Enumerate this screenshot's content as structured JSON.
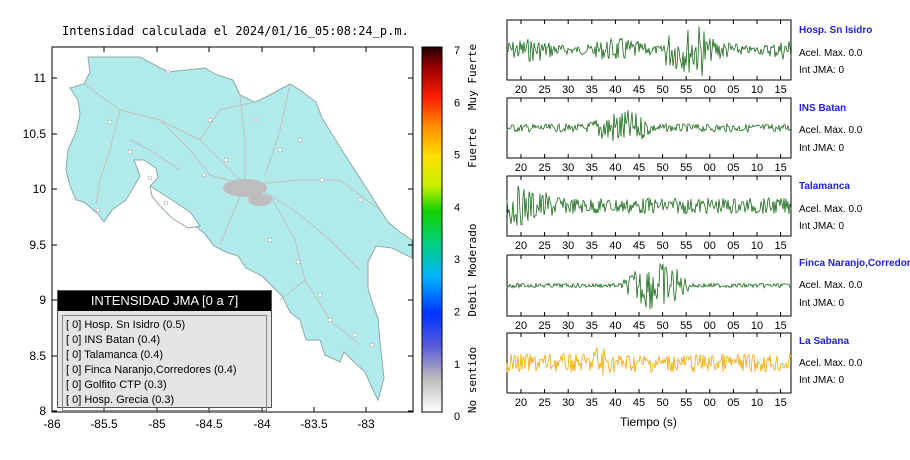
{
  "map": {
    "title": "Intensidad calculada el 2024/01/16_05:08:24_p.m.",
    "y_ticks": [
      "11",
      "10.5",
      "10",
      "9.5",
      "9",
      "8.5",
      "8"
    ],
    "x_ticks": [
      "-86",
      "-85.5",
      "-85",
      "-84.5",
      "-84",
      "-83.5",
      "-83"
    ],
    "fill_color": "#b0eaea"
  },
  "legend": {
    "title": "INTENSIDAD JMA [0 a 7]",
    "items": [
      "[ 0]  Hosp. Sn Isidro (0.5)",
      "[ 0]  INS Batan (0.4)",
      "[ 0]  Talamanca (0.4)",
      "[ 0]  Finca Naranjo,Corredores (0.4)",
      "[ 0]  Golfito CTP (0.3)",
      "[ 0]  Hosp. Grecia (0.3)"
    ]
  },
  "scale": {
    "numbers": [
      "7",
      "6",
      "5",
      "4",
      "3",
      "2",
      "1",
      "0"
    ],
    "labels": [
      "Muy Fuerte",
      "Fuerte",
      "Moderado",
      "Debil",
      "No sentido"
    ]
  },
  "seismograms": {
    "x_ticks": [
      "20",
      "25",
      "30",
      "35",
      "40",
      "45",
      "50",
      "55",
      "00",
      "05",
      "10",
      "15"
    ],
    "xlabel": "Tiempo (s)",
    "stations": [
      {
        "name": "Hosp. Sn Isidro",
        "acel": "Acel. Max. 0.0",
        "jma": "Int JMA: 0",
        "color": "#1a6b1a"
      },
      {
        "name": "INS Batan",
        "acel": "Acel. Max. 0.0",
        "jma": "Int JMA: 0",
        "color": "#1a6b1a"
      },
      {
        "name": "Talamanca",
        "acel": "Acel. Max. 0.0",
        "jma": "Int JMA: 0",
        "color": "#1a6b1a"
      },
      {
        "name": "Finca Naranjo,Corredores",
        "acel": "Acel. Max. 0.0",
        "jma": "Int JMA: 0",
        "color": "#1a6b1a"
      },
      {
        "name": "La Sabana",
        "acel": "Acel. Max. 0.0",
        "jma": "Int JMA: 0",
        "color": "#f5a800"
      }
    ]
  }
}
